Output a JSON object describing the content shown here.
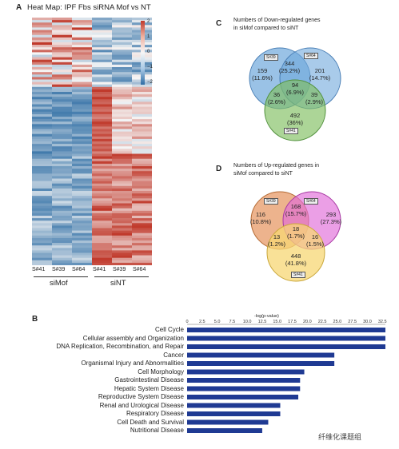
{
  "panelA": {
    "letter": "A",
    "title": "Heat Map: IPF Fbs siRNA Mof vs NT",
    "columns": [
      "S#41",
      "S#39",
      "S#64",
      "S#41",
      "S#39",
      "S#64"
    ],
    "groups": [
      "siMof",
      "siNT"
    ],
    "colorbar_ticks": [
      "2",
      "1",
      "0",
      "−1",
      "−2"
    ]
  },
  "panelC": {
    "letter": "C",
    "title_line1": "Numbers of Down-regulated genes",
    "title_line2": "in siMof compared to siNT",
    "labels": [
      "S#39",
      "S#64",
      "S#41"
    ],
    "regions": [
      {
        "count": "159",
        "pct": "(11.6%)"
      },
      {
        "count": "344",
        "pct": "(25.2%)"
      },
      {
        "count": "201",
        "pct": "(14.7%)"
      },
      {
        "count": "94",
        "pct": "(6.9%)"
      },
      {
        "count": "36",
        "pct": "(2.6%)"
      },
      {
        "count": "39",
        "pct": "(2.9%)"
      },
      {
        "count": "492",
        "pct": "(36%)"
      }
    ]
  },
  "panelD": {
    "letter": "D",
    "title_line1": "Numbers of Up-regulated genes in",
    "title_line2": "siMof compared to siNT",
    "labels": [
      "S#39",
      "S#64",
      "S#41"
    ],
    "regions": [
      {
        "count": "116",
        "pct": "(10.8%)"
      },
      {
        "count": "168",
        "pct": "(15.7%)"
      },
      {
        "count": "293",
        "pct": "(27.3%)"
      },
      {
        "count": "18",
        "pct": "(1.7%)"
      },
      {
        "count": "13",
        "pct": "(1.2%)"
      },
      {
        "count": "16",
        "pct": "(1.5%)"
      },
      {
        "count": "448",
        "pct": "(41.8%)"
      }
    ]
  },
  "panelB": {
    "letter": "B",
    "chart_data": {
      "type": "bar",
      "orientation": "horizontal",
      "xlabel": "-log(p-value)",
      "xlim": [
        0,
        33
      ],
      "x_ticks": [
        "0",
        "2.5",
        "5.0",
        "7.5",
        "10.0",
        "12.5",
        "15.0",
        "17.5",
        "20.0",
        "22.5",
        "25.0",
        "27.5",
        "30.0",
        "32.5"
      ],
      "categories": [
        "Cell Cycle",
        "Cellular assembly and Organization",
        "DNA Replication, Recombination, and Repair",
        "Cancer",
        "Organismal Injury and Abnormalities",
        "Cell Morphology",
        "Gastrointestinal Disease",
        "Hepatic System Disease",
        "Reproductive System Disease",
        "Renal and Urological Disease",
        "Respiratory Disease",
        "Cell Death and Survival",
        "Nutritional Disease"
      ],
      "values": [
        33,
        33,
        33,
        24.5,
        24.5,
        19.5,
        18.8,
        18.8,
        18.5,
        15.5,
        15.5,
        13.5,
        12.5
      ],
      "bar_color": "#1f3a93"
    }
  },
  "watermark": "纤维化课题组",
  "colors": {
    "heat_high": "#c0392b",
    "heat_low": "#2e6da4",
    "venn_blue": "#6fa8dc",
    "venn_green": "#7fbf5f",
    "venn_orange": "#e8a070",
    "venn_pink": "#e06cd8",
    "venn_yellow": "#f7d774"
  }
}
